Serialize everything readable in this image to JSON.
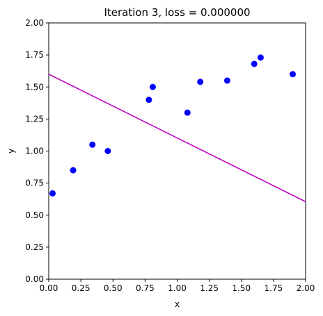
{
  "chart_data": {
    "type": "scatter",
    "title": "Iteration 3, loss = 0.000000",
    "xlabel": "x",
    "ylabel": "y",
    "xlim": [
      0,
      2
    ],
    "ylim": [
      0,
      2
    ],
    "xticks": [
      "0.00",
      "0.25",
      "0.50",
      "0.75",
      "1.00",
      "1.25",
      "1.50",
      "1.75",
      "2.00"
    ],
    "yticks": [
      "0.00",
      "0.25",
      "0.50",
      "0.75",
      "1.00",
      "1.25",
      "1.50",
      "1.75",
      "2.00"
    ],
    "grid": false,
    "points": {
      "color": "#0000ff",
      "x": [
        0.03,
        0.19,
        0.34,
        0.46,
        0.78,
        0.81,
        1.08,
        1.18,
        1.39,
        1.6,
        1.65,
        1.9
      ],
      "y": [
        0.67,
        0.85,
        1.05,
        1.0,
        1.4,
        1.5,
        1.3,
        1.54,
        1.55,
        1.68,
        1.73,
        1.6
      ]
    },
    "line": {
      "color": "#bf00bf",
      "x": [
        0,
        2
      ],
      "y": [
        1.6,
        0.605
      ]
    }
  }
}
